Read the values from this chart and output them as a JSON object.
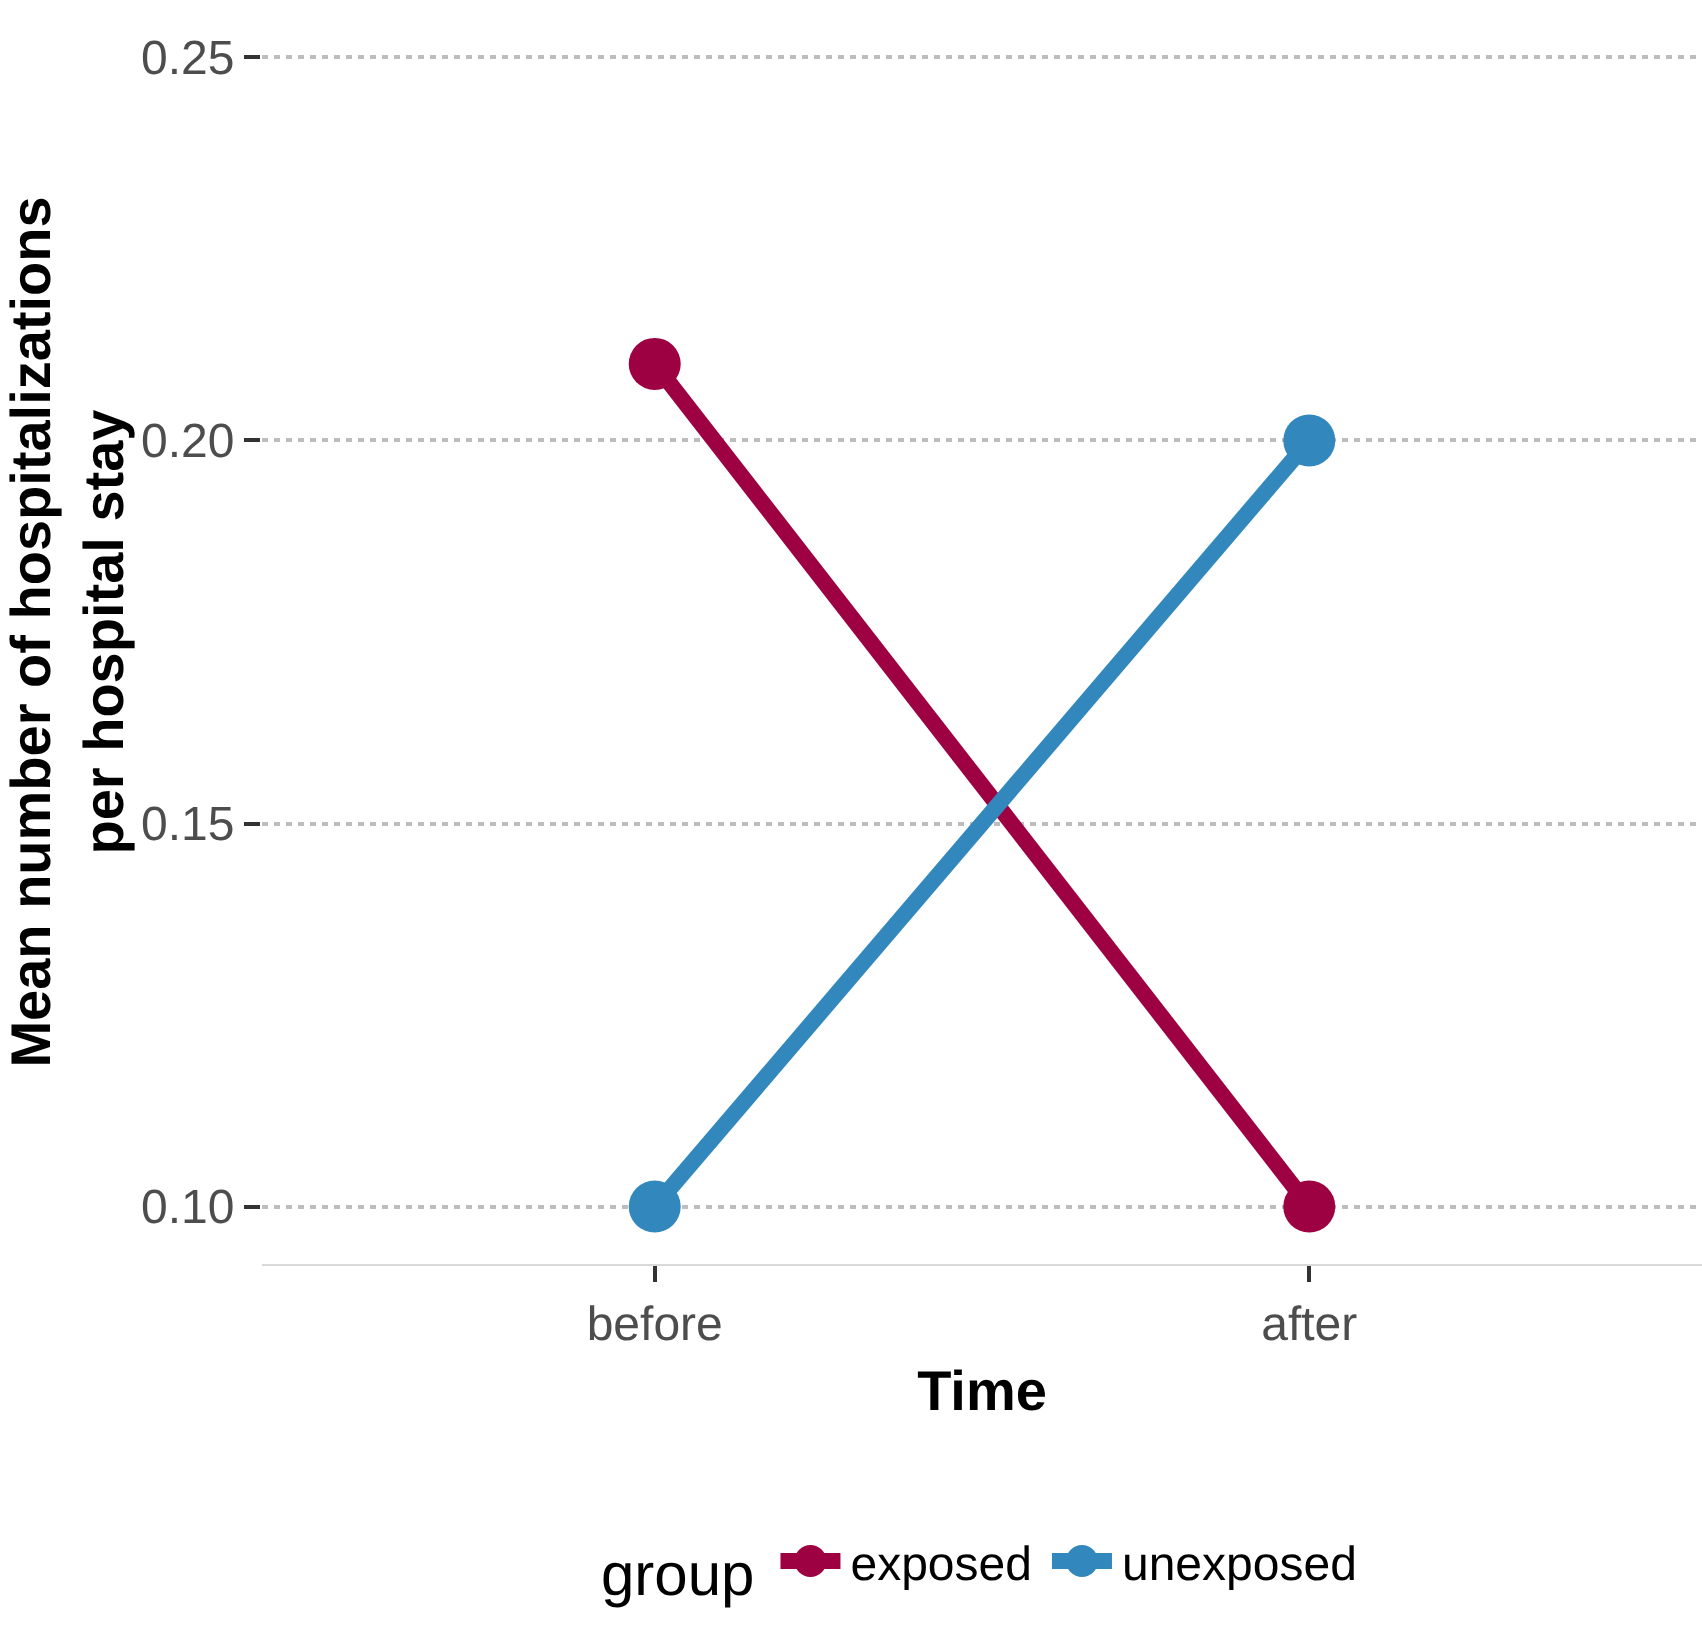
{
  "chart_data": {
    "type": "line",
    "xlabel": "Time",
    "ylabel": "Mean number of hospitalizations\nper hospital stay",
    "legend_title": "group",
    "categories": [
      "before",
      "after"
    ],
    "series": [
      {
        "name": "exposed",
        "color": "#9e0142",
        "values": [
          0.21,
          0.1
        ]
      },
      {
        "name": "unexposed",
        "color": "#3288bd",
        "values": [
          0.1,
          0.2
        ]
      }
    ],
    "ylim": [
      0.0925,
      0.2575
    ],
    "yticks": [
      {
        "value": 0.1,
        "label": "0.10"
      },
      {
        "value": 0.15,
        "label": "0.15"
      },
      {
        "value": 0.2,
        "label": "0.20"
      },
      {
        "value": 0.25,
        "label": "0.25"
      }
    ],
    "grid": "y",
    "legend": "bottom",
    "marker": "circle",
    "line_style": "solid"
  }
}
